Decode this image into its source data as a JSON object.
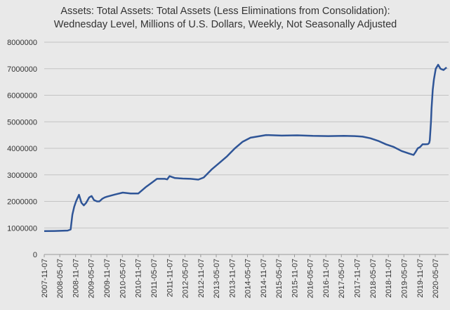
{
  "chart_data": {
    "type": "line",
    "title": [
      "Assets: Total Assets: Total Assets (Less Eliminations from Consolidation):",
      "Wednesday Level, Millions of U.S. Dollars, Weekly, Not Seasonally Adjusted"
    ],
    "xlabel": "",
    "ylabel": "",
    "ylim": [
      0,
      8000000
    ],
    "y_ticks": [
      0,
      1000000,
      2000000,
      3000000,
      4000000,
      5000000,
      6000000,
      7000000,
      8000000
    ],
    "y_tick_labels": [
      "0",
      "1000000",
      "2000000",
      "3000000",
      "4000000",
      "5000000",
      "6000000",
      "7000000",
      "8000000"
    ],
    "x_ticks": [
      "2007-11-07",
      "2008-05-07",
      "2008-11-07",
      "2009-05-07",
      "2009-11-07",
      "2010-05-07",
      "2010-11-07",
      "2011-05-07",
      "2011-11-07",
      "2012-05-07",
      "2012-11-07",
      "2013-05-07",
      "2013-11-07",
      "2014-05-07",
      "2014-11-07",
      "2015-05-07",
      "2015-11-07",
      "2016-05-07",
      "2016-11-07",
      "2017-05-07",
      "2017-11-07",
      "2018-05-07",
      "2018-11-07",
      "2019-05-07",
      "2019-11-07",
      "2020-05-07"
    ],
    "grid": true,
    "line_color": "#2f5597",
    "series": [
      {
        "x": [
          "2007-11-07",
          "2008-03-07",
          "2008-08-07",
          "2008-09-10",
          "2008-10-01",
          "2008-10-22",
          "2008-11-12",
          "2008-12-17",
          "2009-01-14",
          "2009-02-11",
          "2009-03-11",
          "2009-04-15",
          "2009-05-13",
          "2009-06-10",
          "2009-07-15",
          "2009-08-12",
          "2009-09-16",
          "2009-10-14",
          "2009-11-11",
          "2010-02-10",
          "2010-05-12",
          "2010-08-11",
          "2010-11-10",
          "2011-02-09",
          "2011-04-13",
          "2011-06-15",
          "2011-09-14",
          "2011-10-12",
          "2011-11-09",
          "2012-01-11",
          "2012-04-11",
          "2012-07-11",
          "2012-10-10",
          "2012-12-12",
          "2013-03-13",
          "2013-06-12",
          "2013-09-11",
          "2013-12-11",
          "2014-03-12",
          "2014-06-11",
          "2014-09-10",
          "2014-12-10",
          "2015-06-10",
          "2015-12-09",
          "2016-06-08",
          "2016-12-07",
          "2017-06-07",
          "2017-10-11",
          "2018-01-10",
          "2018-04-11",
          "2018-07-11",
          "2018-10-10",
          "2019-01-09",
          "2019-04-10",
          "2019-07-10",
          "2019-08-28",
          "2019-09-18",
          "2019-10-16",
          "2019-11-13",
          "2019-12-11",
          "2020-01-15",
          "2020-02-12",
          "2020-02-26",
          "2020-03-04",
          "2020-03-18",
          "2020-03-25",
          "2020-04-08",
          "2020-04-22",
          "2020-05-13",
          "2020-06-10",
          "2020-07-08",
          "2020-08-12",
          "2020-09-16"
        ],
        "values": [
          880000,
          885000,
          900000,
          940000,
          1500000,
          1800000,
          2000000,
          2250000,
          1950000,
          1850000,
          1950000,
          2150000,
          2200000,
          2050000,
          2000000,
          2000000,
          2100000,
          2150000,
          2180000,
          2260000,
          2330000,
          2300000,
          2300000,
          2550000,
          2700000,
          2850000,
          2850000,
          2830000,
          2950000,
          2880000,
          2860000,
          2850000,
          2820000,
          2900000,
          3200000,
          3450000,
          3700000,
          4000000,
          4250000,
          4400000,
          4450000,
          4500000,
          4480000,
          4490000,
          4470000,
          4460000,
          4470000,
          4460000,
          4440000,
          4380000,
          4280000,
          4150000,
          4050000,
          3900000,
          3800000,
          3750000,
          3850000,
          4000000,
          4050000,
          4150000,
          4150000,
          4160000,
          4200000,
          4300000,
          5000000,
          5500000,
          6200000,
          6600000,
          7000000,
          7150000,
          7000000,
          6950000,
          7050000
        ]
      }
    ]
  }
}
